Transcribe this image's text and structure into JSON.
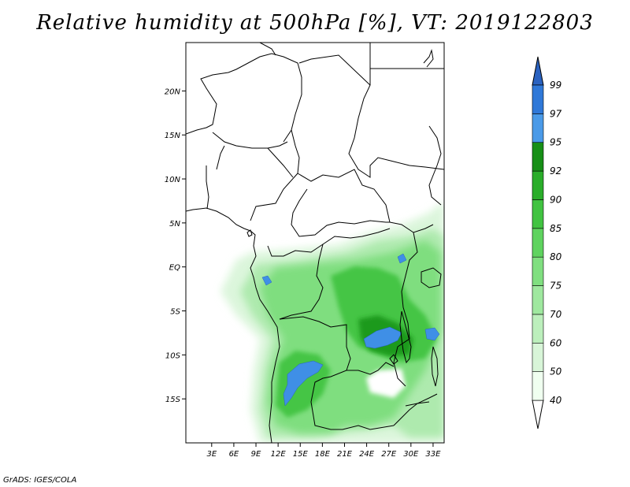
{
  "title": "Relative humidity at 500hPa [%], VT: 2019122803",
  "credit": "GrADS: IGES/COLA",
  "map": {
    "lon_range": [
      -0.5,
      34.5
    ],
    "lat_range": [
      -20,
      25.5
    ],
    "lat_ticks": [
      {
        "value": 20,
        "label": "20N"
      },
      {
        "value": 15,
        "label": "15N"
      },
      {
        "value": 10,
        "label": "10N"
      },
      {
        "value": 5,
        "label": "5N"
      },
      {
        "value": 0,
        "label": "EQ"
      },
      {
        "value": -5,
        "label": "5S"
      },
      {
        "value": -10,
        "label": "10S"
      },
      {
        "value": -15,
        "label": "15S"
      }
    ],
    "lon_ticks": [
      {
        "value": 3,
        "label": "3E"
      },
      {
        "value": 6,
        "label": "6E"
      },
      {
        "value": 9,
        "label": "9E"
      },
      {
        "value": 12,
        "label": "12E"
      },
      {
        "value": 15,
        "label": "15E"
      },
      {
        "value": 18,
        "label": "18E"
      },
      {
        "value": 21,
        "label": "21E"
      },
      {
        "value": 24,
        "label": "24E"
      },
      {
        "value": 27,
        "label": "27E"
      },
      {
        "value": 30,
        "label": "30E"
      },
      {
        "value": 33,
        "label": "33E"
      }
    ]
  },
  "colorbar": {
    "levels": [
      {
        "label": "40",
        "color": "#f0fff0"
      },
      {
        "label": "50",
        "color": "#d8f5d8"
      },
      {
        "label": "60",
        "color": "#bcefbc"
      },
      {
        "label": "70",
        "color": "#9fe89f"
      },
      {
        "label": "75",
        "color": "#80df80"
      },
      {
        "label": "80",
        "color": "#5fd35f"
      },
      {
        "label": "85",
        "color": "#41c341"
      },
      {
        "label": "90",
        "color": "#2aad2a"
      },
      {
        "label": "92",
        "color": "#178f17"
      },
      {
        "label": "95",
        "color": "#4a9ae8"
      },
      {
        "label": "97",
        "color": "#2f78d8"
      },
      {
        "label": "99",
        "color": ""
      }
    ],
    "below_color": "#ffffff",
    "above_color": "#2a62c0"
  }
}
